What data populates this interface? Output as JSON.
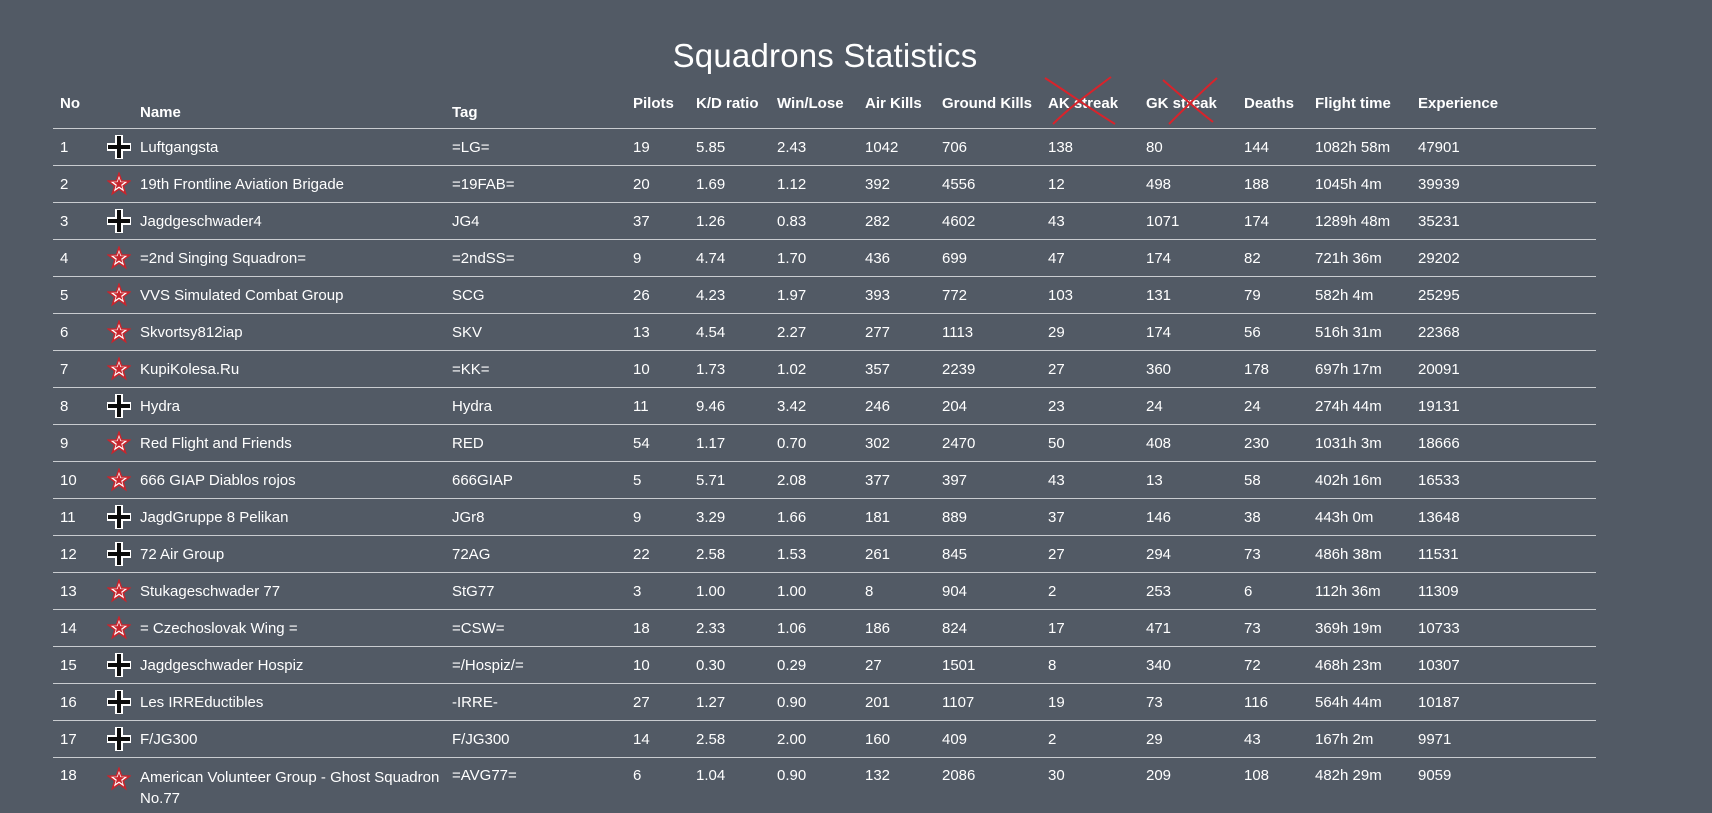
{
  "page": {
    "title": "Squadrons Statistics"
  },
  "colors": {
    "background": "#525a65",
    "text": "#ffffff",
    "row_divider": "#c9ccd0",
    "strike_mark": "#d9232b",
    "star_red": "#c8252d",
    "cross_black": "#0b0b0b"
  },
  "table": {
    "headers": {
      "no": "No",
      "icon": "",
      "name": "Name",
      "tag": "Tag",
      "pilots": "Pilots",
      "kd_ratio": "K/D ratio",
      "win_lose": "Win/Lose",
      "air_kills": "Air Kills",
      "ground_kills": "Ground Kills",
      "ak_streak": "AK streak",
      "gk_streak": "GK streak",
      "deaths": "Deaths",
      "flight_time": "Flight time",
      "experience": "Experience"
    },
    "struck_headers": [
      "ak_streak",
      "gk_streak"
    ],
    "rows": [
      {
        "no": "1",
        "icon": "balkenkreuz-icon",
        "name": "Luftgangsta",
        "tag": "=LG=",
        "pilots": "19",
        "kd_ratio": "5.85",
        "win_lose": "2.43",
        "air_kills": "1042",
        "ground_kills": "706",
        "ak_streak": "138",
        "gk_streak": "80",
        "deaths": "144",
        "flight_time": "1082h 58m",
        "experience": "47901"
      },
      {
        "no": "2",
        "icon": "red-star-icon",
        "name": "19th Frontline Aviation Brigade",
        "tag": "=19FAB=",
        "pilots": "20",
        "kd_ratio": "1.69",
        "win_lose": "1.12",
        "air_kills": "392",
        "ground_kills": "4556",
        "ak_streak": "12",
        "gk_streak": "498",
        "deaths": "188",
        "flight_time": "1045h 4m",
        "experience": "39939"
      },
      {
        "no": "3",
        "icon": "balkenkreuz-icon",
        "name": "Jagdgeschwader4",
        "tag": "JG4",
        "pilots": "37",
        "kd_ratio": "1.26",
        "win_lose": "0.83",
        "air_kills": "282",
        "ground_kills": "4602",
        "ak_streak": "43",
        "gk_streak": "1071",
        "deaths": "174",
        "flight_time": "1289h 48m",
        "experience": "35231"
      },
      {
        "no": "4",
        "icon": "red-star-icon",
        "name": "=2nd Singing Squadron=",
        "tag": "=2ndSS=",
        "pilots": "9",
        "kd_ratio": "4.74",
        "win_lose": "1.70",
        "air_kills": "436",
        "ground_kills": "699",
        "ak_streak": "47",
        "gk_streak": "174",
        "deaths": "82",
        "flight_time": "721h 36m",
        "experience": "29202"
      },
      {
        "no": "5",
        "icon": "red-star-icon",
        "name": "VVS Simulated Combat Group",
        "tag": "SCG",
        "pilots": "26",
        "kd_ratio": "4.23",
        "win_lose": "1.97",
        "air_kills": "393",
        "ground_kills": "772",
        "ak_streak": "103",
        "gk_streak": "131",
        "deaths": "79",
        "flight_time": "582h 4m",
        "experience": "25295"
      },
      {
        "no": "6",
        "icon": "red-star-icon",
        "name": "Skvortsy812iap",
        "tag": "SKV",
        "pilots": "13",
        "kd_ratio": "4.54",
        "win_lose": "2.27",
        "air_kills": "277",
        "ground_kills": "1113",
        "ak_streak": "29",
        "gk_streak": "174",
        "deaths": "56",
        "flight_time": "516h 31m",
        "experience": "22368"
      },
      {
        "no": "7",
        "icon": "red-star-icon",
        "name": "KupiKolesa.Ru",
        "tag": "=KK=",
        "pilots": "10",
        "kd_ratio": "1.73",
        "win_lose": "1.02",
        "air_kills": "357",
        "ground_kills": "2239",
        "ak_streak": "27",
        "gk_streak": "360",
        "deaths": "178",
        "flight_time": "697h 17m",
        "experience": "20091"
      },
      {
        "no": "8",
        "icon": "balkenkreuz-icon",
        "name": "Hydra",
        "tag": "Hydra",
        "pilots": "11",
        "kd_ratio": "9.46",
        "win_lose": "3.42",
        "air_kills": "246",
        "ground_kills": "204",
        "ak_streak": "23",
        "gk_streak": "24",
        "deaths": "24",
        "flight_time": "274h 44m",
        "experience": "19131"
      },
      {
        "no": "9",
        "icon": "red-star-icon",
        "name": "Red Flight and Friends",
        "tag": "RED",
        "pilots": "54",
        "kd_ratio": "1.17",
        "win_lose": "0.70",
        "air_kills": "302",
        "ground_kills": "2470",
        "ak_streak": "50",
        "gk_streak": "408",
        "deaths": "230",
        "flight_time": "1031h 3m",
        "experience": "18666"
      },
      {
        "no": "10",
        "icon": "red-star-icon",
        "name": "666 GIAP Diablos rojos",
        "tag": "666GIAP",
        "pilots": "5",
        "kd_ratio": "5.71",
        "win_lose": "2.08",
        "air_kills": "377",
        "ground_kills": "397",
        "ak_streak": "43",
        "gk_streak": "13",
        "deaths": "58",
        "flight_time": "402h 16m",
        "experience": "16533"
      },
      {
        "no": "11",
        "icon": "balkenkreuz-icon",
        "name": "JagdGruppe 8 Pelikan",
        "tag": "JGr8",
        "pilots": "9",
        "kd_ratio": "3.29",
        "win_lose": "1.66",
        "air_kills": "181",
        "ground_kills": "889",
        "ak_streak": "37",
        "gk_streak": "146",
        "deaths": "38",
        "flight_time": "443h 0m",
        "experience": "13648"
      },
      {
        "no": "12",
        "icon": "balkenkreuz-icon",
        "name": "72 Air Group",
        "tag": "72AG",
        "pilots": "22",
        "kd_ratio": "2.58",
        "win_lose": "1.53",
        "air_kills": "261",
        "ground_kills": "845",
        "ak_streak": "27",
        "gk_streak": "294",
        "deaths": "73",
        "flight_time": "486h 38m",
        "experience": "11531"
      },
      {
        "no": "13",
        "icon": "red-star-icon",
        "name": "Stukageschwader 77",
        "tag": "StG77",
        "pilots": "3",
        "kd_ratio": "1.00",
        "win_lose": "1.00",
        "air_kills": "8",
        "ground_kills": "904",
        "ak_streak": "2",
        "gk_streak": "253",
        "deaths": "6",
        "flight_time": "112h 36m",
        "experience": "11309"
      },
      {
        "no": "14",
        "icon": "red-star-icon",
        "name": "= Czechoslovak Wing =",
        "tag": "=CSW=",
        "pilots": "18",
        "kd_ratio": "2.33",
        "win_lose": "1.06",
        "air_kills": "186",
        "ground_kills": "824",
        "ak_streak": "17",
        "gk_streak": "471",
        "deaths": "73",
        "flight_time": "369h 19m",
        "experience": "10733"
      },
      {
        "no": "15",
        "icon": "balkenkreuz-icon",
        "name": "Jagdgeschwader Hospiz",
        "tag": "=/Hospiz/=",
        "pilots": "10",
        "kd_ratio": "0.30",
        "win_lose": "0.29",
        "air_kills": "27",
        "ground_kills": "1501",
        "ak_streak": "8",
        "gk_streak": "340",
        "deaths": "72",
        "flight_time": "468h 23m",
        "experience": "10307"
      },
      {
        "no": "16",
        "icon": "balkenkreuz-icon",
        "name": "Les IRREductibles",
        "tag": "-IRRE-",
        "pilots": "27",
        "kd_ratio": "1.27",
        "win_lose": "0.90",
        "air_kills": "201",
        "ground_kills": "1107",
        "ak_streak": "19",
        "gk_streak": "73",
        "deaths": "116",
        "flight_time": "564h 44m",
        "experience": "10187"
      },
      {
        "no": "17",
        "icon": "balkenkreuz-icon",
        "name": "F/JG300",
        "tag": "F/JG300",
        "pilots": "14",
        "kd_ratio": "2.58",
        "win_lose": "2.00",
        "air_kills": "160",
        "ground_kills": "409",
        "ak_streak": "2",
        "gk_streak": "29",
        "deaths": "43",
        "flight_time": "167h 2m",
        "experience": "9971"
      },
      {
        "no": "18",
        "icon": "red-star-icon",
        "name": "American Volunteer Group - Ghost Squadron No.77",
        "tag": "=AVG77=",
        "pilots": "6",
        "kd_ratio": "1.04",
        "win_lose": "0.90",
        "air_kills": "132",
        "ground_kills": "2086",
        "ak_streak": "30",
        "gk_streak": "209",
        "deaths": "108",
        "flight_time": "482h 29m",
        "experience": "9059"
      }
    ]
  }
}
